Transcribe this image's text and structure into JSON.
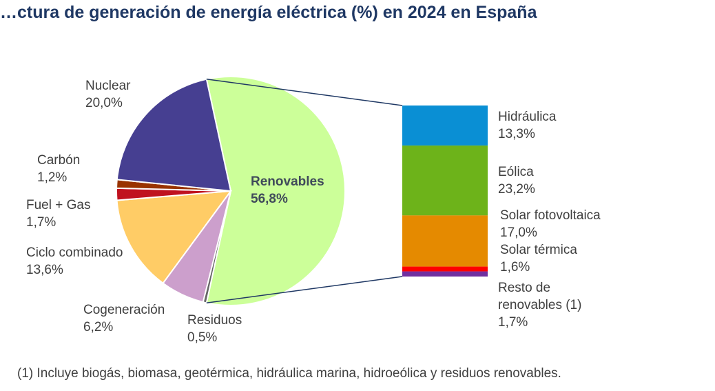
{
  "chart_data": {
    "type": "pie",
    "title": "…ctura de generación de energía eléctrica (%) en 2024 en España",
    "slices": [
      {
        "name": "Renovables",
        "value": 56.8,
        "label": "56,8%",
        "color": "#ccff99"
      },
      {
        "name": "Residuos",
        "value": 0.5,
        "label": "0,5%",
        "color": "#666666"
      },
      {
        "name": "Cogeneración",
        "value": 6.2,
        "label": "6,2%",
        "color": "#cc9fcc"
      },
      {
        "name": "Ciclo combinado",
        "value": 13.6,
        "label": "13,6%",
        "color": "#ffcc66"
      },
      {
        "name": "Fuel + Gas",
        "value": 1.7,
        "label": "1,7%",
        "color": "#c0121f"
      },
      {
        "name": "Carbón",
        "value": 1.2,
        "label": "1,2%",
        "color": "#993300"
      },
      {
        "name": "Nuclear",
        "value": 20.0,
        "label": "20,0%",
        "color": "#463f91"
      }
    ],
    "breakdown_of": "Renovables",
    "breakdown": [
      {
        "name": "Hidráulica",
        "value": 13.3,
        "label": "13,3%",
        "color": "#0a8fd4"
      },
      {
        "name": "Eólica",
        "value": 23.2,
        "label": "23,2%",
        "color": "#6db31a"
      },
      {
        "name": "Solar fotovoltaica",
        "value": 17.0,
        "label": "17,0%",
        "color": "#e58a00"
      },
      {
        "name": "Solar térmica",
        "value": 1.6,
        "label": "1,6%",
        "color": "#ff0000"
      },
      {
        "name": "Resto de renovables (1)",
        "label_lines": [
          "Resto de",
          "renovables (1)"
        ],
        "value": 1.7,
        "label": "1,7%",
        "color": "#7030a0"
      }
    ],
    "footnote": "(1) Incluye biogás, biomasa, geotérmica, hidráulica marina, hidroeólica y residuos renovables.",
    "connector_color": "#1f3864"
  }
}
